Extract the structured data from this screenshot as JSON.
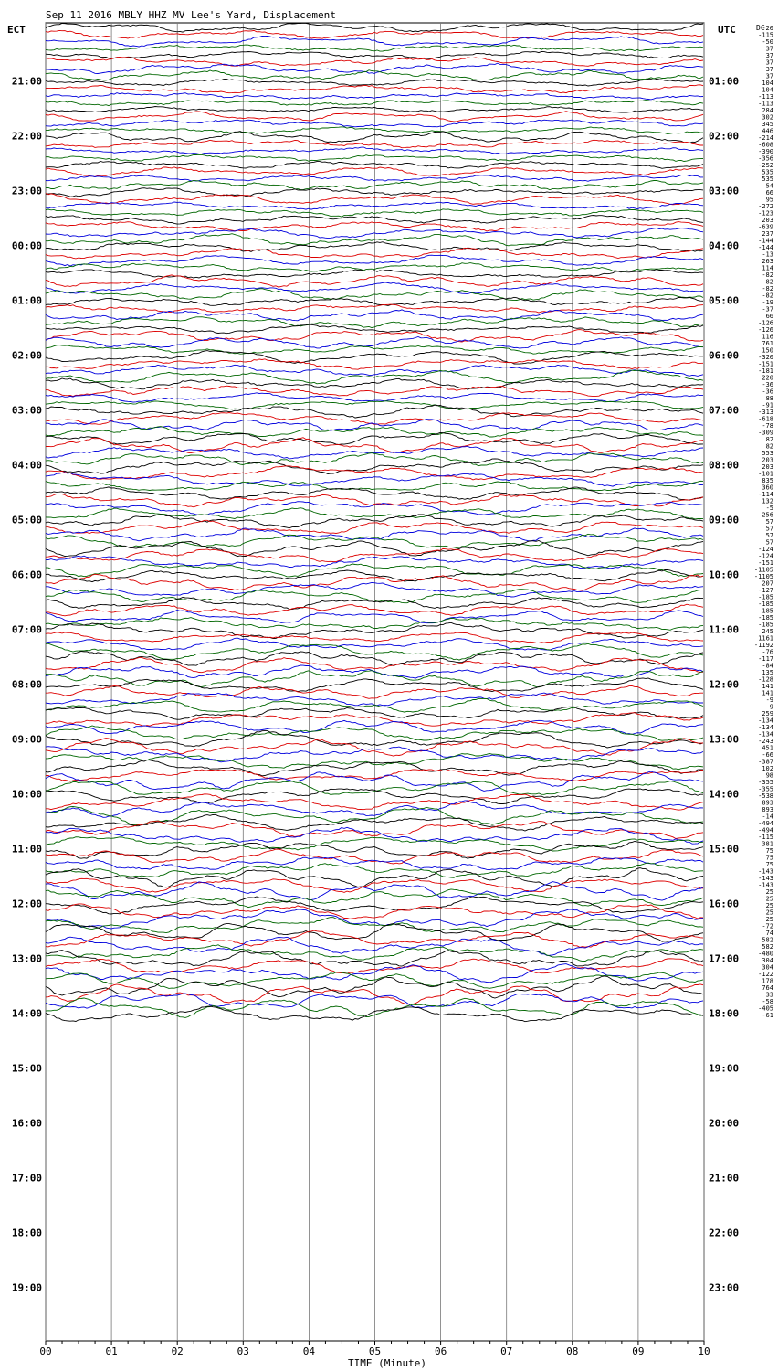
{
  "chart_data": {
    "type": "line",
    "title": "Sep 11 2016 MBLY HHZ MV Lee's Yard, Displacement",
    "xlabel": "TIME (Minute)",
    "left_axis_label": "ECT",
    "right_axis_label": "UTC",
    "right_corner_label": "DC",
    "xlim": [
      0,
      10
    ],
    "x_ticks": [
      "00",
      "01",
      "02",
      "03",
      "04",
      "05",
      "06",
      "07",
      "08",
      "09",
      "10"
    ],
    "left_hour_labels": [
      "21:00",
      "22:00",
      "23:00",
      "00:00",
      "01:00",
      "02:00",
      "03:00",
      "04:00",
      "05:00",
      "06:00",
      "07:00",
      "08:00",
      "09:00",
      "10:00",
      "11:00",
      "12:00",
      "13:00",
      "14:00",
      "15:00",
      "16:00",
      "17:00",
      "18:00",
      "19:00"
    ],
    "right_hour_labels": [
      "01:00",
      "02:00",
      "03:00",
      "04:00",
      "05:00",
      "06:00",
      "07:00",
      "08:00",
      "09:00",
      "10:00",
      "11:00",
      "12:00",
      "13:00",
      "14:00",
      "15:00",
      "16:00",
      "17:00",
      "18:00",
      "19:00",
      "20:00",
      "21:00",
      "22:00",
      "23:00"
    ],
    "trace_colors": [
      "#000000",
      "#dd0000",
      "#0000dd",
      "#006600"
    ],
    "trace_offsets": [
      "-20",
      "-115",
      "-50",
      "37",
      "37",
      "37",
      "37",
      "37",
      "104",
      "104",
      "-113",
      "-113",
      "284",
      "302",
      "345",
      "446",
      "-214",
      "-608",
      "-390",
      "-356",
      "-252",
      "535",
      "535",
      "54",
      "66",
      "95",
      "-272",
      "-123",
      "203",
      "-639",
      "237",
      "-144",
      "-144",
      "-13",
      "263",
      "114",
      "-82",
      "-82",
      "-82",
      "-82",
      "-19",
      "-37",
      "66",
      "-126",
      "-126",
      "116",
      "761",
      "150",
      "-320",
      "-151",
      "-181",
      "220",
      "-36",
      "-36",
      "88",
      "-91",
      "-313",
      "-618",
      "-78",
      "-309",
      "82",
      "82",
      "553",
      "203",
      "203",
      "-101",
      "835",
      "360",
      "-114",
      "132",
      "-5",
      "256",
      "57",
      "57",
      "57",
      "57",
      "-124",
      "-124",
      "-151",
      "-1105",
      "-1105",
      "207",
      "-127",
      "-185",
      "-185",
      "-185",
      "-185",
      "-185",
      "245",
      "1161",
      "-1192",
      "-76",
      "-117",
      "-84",
      "135",
      "-128",
      "141",
      "141",
      "-9",
      "-9",
      "259",
      "-134",
      "-134",
      "-134",
      "-243",
      "451",
      "-66",
      "-387",
      "102",
      "98",
      "-355",
      "-355",
      "-538",
      "893",
      "893",
      "-14",
      "-494",
      "-494",
      "-115",
      "381",
      "75",
      "75",
      "75",
      "-143",
      "-143",
      "-143",
      "25",
      "25",
      "25",
      "25",
      "25",
      "-72",
      "74",
      "582",
      "582",
      "-480",
      "304",
      "304",
      "-122",
      "178",
      "764",
      "33",
      "-58",
      "-405",
      "-61"
    ]
  }
}
